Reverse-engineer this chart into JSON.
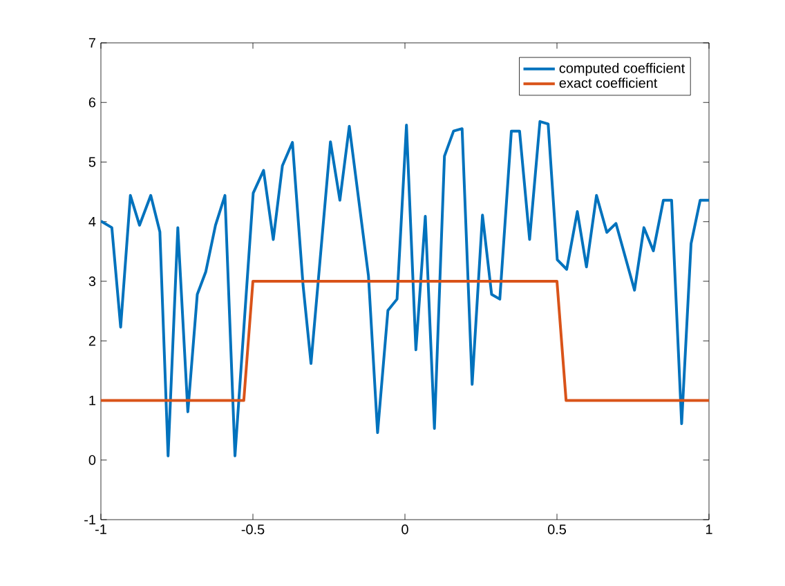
{
  "chart_data": {
    "type": "line",
    "xlim": [
      -1,
      1
    ],
    "ylim": [
      -1,
      7
    ],
    "xticks": [
      -1,
      -0.5,
      0,
      0.5,
      1
    ],
    "yticks": [
      -1,
      0,
      1,
      2,
      3,
      4,
      5,
      6,
      7
    ],
    "grid": false,
    "legend": "top right",
    "marker": "none",
    "line_style": "solid",
    "series": [
      {
        "name": "computed coefficient",
        "color": "#0072bd",
        "x": [
          -1.0,
          -0.964,
          -0.935,
          -0.903,
          -0.873,
          -0.836,
          -0.806,
          -0.779,
          -0.747,
          -0.714,
          -0.683,
          -0.655,
          -0.623,
          -0.592,
          -0.559,
          -0.499,
          -0.465,
          -0.433,
          -0.403,
          -0.37,
          -0.335,
          -0.309,
          -0.245,
          -0.214,
          -0.183,
          -0.12,
          -0.09,
          -0.056,
          -0.026,
          0.005,
          0.036,
          0.067,
          0.097,
          0.13,
          0.16,
          0.188,
          0.221,
          0.255,
          0.285,
          0.312,
          0.35,
          0.377,
          0.41,
          0.444,
          0.471,
          0.501,
          0.532,
          0.567,
          0.597,
          0.63,
          0.664,
          0.694,
          0.755,
          0.786,
          0.817,
          0.85,
          0.877,
          0.91,
          0.941,
          0.971,
          1.0
        ],
        "values": [
          4.01,
          3.9,
          2.23,
          4.44,
          3.94,
          4.44,
          3.83,
          0.07,
          3.9,
          0.81,
          2.78,
          3.16,
          3.94,
          4.44,
          0.07,
          4.48,
          4.86,
          3.7,
          4.94,
          5.33,
          2.93,
          1.62,
          5.34,
          4.36,
          5.6,
          3.09,
          0.46,
          2.51,
          2.7,
          5.62,
          1.85,
          4.09,
          0.53,
          5.1,
          5.52,
          5.56,
          1.27,
          4.11,
          2.78,
          2.7,
          5.52,
          5.52,
          3.7,
          5.68,
          5.64,
          3.36,
          3.2,
          4.17,
          3.24,
          4.44,
          3.82,
          3.97,
          2.85,
          3.9,
          3.51,
          4.36,
          4.36,
          0.61,
          3.63,
          4.36,
          4.36
        ]
      },
      {
        "name": "exact coefficient",
        "color": "#d95319",
        "x": [
          -1,
          -0.53,
          -0.5,
          0.5,
          0.53,
          1
        ],
        "values": [
          1,
          1,
          3,
          3,
          1,
          1
        ]
      }
    ]
  }
}
